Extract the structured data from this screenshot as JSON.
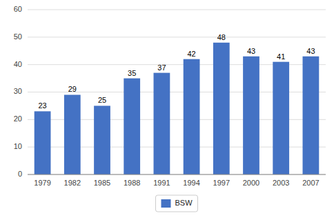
{
  "chart_data": {
    "type": "bar",
    "categories": [
      "1979",
      "1982",
      "1985",
      "1988",
      "1991",
      "1994",
      "1997",
      "2000",
      "2003",
      "2007"
    ],
    "series": [
      {
        "name": "BSW",
        "color": "#4472C4",
        "values": [
          23,
          29,
          25,
          35,
          37,
          42,
          48,
          43,
          41,
          43
        ]
      }
    ],
    "ylim": [
      0,
      60
    ],
    "yticks": [
      0,
      10,
      20,
      30,
      40,
      50,
      60
    ],
    "grid": true,
    "data_labels": true,
    "legend": "bottom"
  }
}
